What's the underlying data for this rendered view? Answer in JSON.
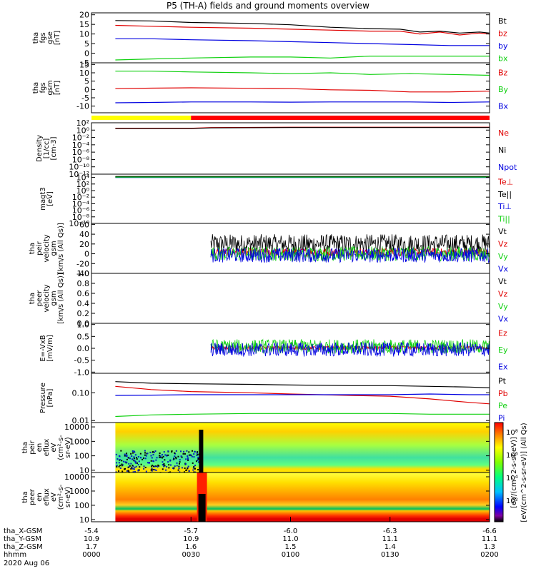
{
  "title": "P5 (TH-A) fields and ground moments overview",
  "colors": {
    "black": "#000000",
    "red": "#e00000",
    "green": "#10d010",
    "blue": "#0000e0",
    "yellow": "#ffff00",
    "frame": "#000000"
  },
  "status_bar": {
    "segments": [
      {
        "from": 0.0,
        "to": 0.5,
        "color": "#ffff00"
      },
      {
        "from": 0.5,
        "to": 2.0,
        "color": "#ff0000"
      }
    ]
  },
  "chart_data": [
    {
      "type": "line",
      "name": "fgs_gse",
      "ylabel": [
        "tha",
        "fgs",
        "gse",
        "[nT]"
      ],
      "ylim": [
        -5,
        21
      ],
      "yticks": [
        "20",
        "15",
        "10",
        "5",
        "0",
        "-5"
      ],
      "ytick_values": [
        20,
        15,
        10,
        5,
        0,
        -5
      ],
      "series": [
        {
          "name": "Bt",
          "color": "#000000",
          "x": [
            0.12,
            0.3,
            0.5,
            0.8,
            1.0,
            1.2,
            1.4,
            1.55,
            1.65,
            1.75,
            1.85,
            1.95,
            2.0
          ],
          "y": [
            17,
            16.8,
            16,
            15.5,
            14.8,
            13.5,
            12.8,
            12.5,
            11,
            11.5,
            10.5,
            11,
            10.5
          ]
        },
        {
          "name": "bz",
          "color": "#e00000",
          "x": [
            0.12,
            0.3,
            0.5,
            0.8,
            1.0,
            1.2,
            1.4,
            1.55,
            1.65,
            1.75,
            1.85,
            1.95,
            2.0
          ],
          "y": [
            14.5,
            14,
            13.5,
            13,
            12.5,
            12,
            11.5,
            11.5,
            10,
            11,
            9.5,
            10.5,
            10
          ]
        },
        {
          "name": "by",
          "color": "#0000e0",
          "x": [
            0.12,
            0.3,
            0.5,
            0.8,
            1.0,
            1.2,
            1.4,
            1.6,
            1.8,
            2.0
          ],
          "y": [
            7.5,
            7.5,
            7,
            6.5,
            6,
            5.5,
            5,
            4.5,
            4,
            4
          ]
        },
        {
          "name": "bx",
          "color": "#10d010",
          "x": [
            0.12,
            0.3,
            0.5,
            0.8,
            1.0,
            1.2,
            1.4,
            1.6,
            1.8,
            2.0
          ],
          "y": [
            -3.5,
            -3,
            -2.5,
            -2,
            -2,
            -2.5,
            -1.5,
            -1.5,
            -1.5,
            -1.5
          ]
        }
      ]
    },
    {
      "type": "line",
      "name": "fgs_gsm",
      "ylabel": [
        "tha",
        "fgs",
        "gsm",
        "[nT]"
      ],
      "ylim": [
        -14,
        16
      ],
      "yticks": [
        "15",
        "10",
        "5",
        "0",
        "-5",
        "-10"
      ],
      "ytick_values": [
        15,
        10,
        5,
        0,
        -5,
        -10
      ],
      "series": [
        {
          "name": "Bz",
          "color": "#e00000",
          "x": [
            0.12,
            0.3,
            0.5,
            0.8,
            1.0,
            1.2,
            1.4,
            1.6,
            1.8,
            2.0
          ],
          "y": [
            0.5,
            0.8,
            1,
            0.7,
            0.5,
            -0.2,
            -0.5,
            -1.5,
            -1.5,
            -1
          ]
        },
        {
          "name": "By",
          "color": "#10d010",
          "x": [
            0.12,
            0.3,
            0.5,
            0.8,
            1.0,
            1.2,
            1.4,
            1.6,
            1.8,
            2.0
          ],
          "y": [
            11,
            11,
            10.5,
            10,
            9.5,
            10,
            9,
            9.5,
            9,
            8.5
          ]
        },
        {
          "name": "Bx",
          "color": "#0000e0",
          "x": [
            0.12,
            0.3,
            0.5,
            0.8,
            1.0,
            1.2,
            1.4,
            1.6,
            1.8,
            2.0
          ],
          "y": [
            -8,
            -7.8,
            -7.5,
            -7.5,
            -7.6,
            -7.5,
            -7.5,
            -7.5,
            -7.8,
            -7.5
          ]
        }
      ]
    },
    {
      "type": "line",
      "name": "density",
      "ylabel": [
        "Density",
        "[1/cc]",
        "[cm-3]"
      ],
      "ylim": [
        -12,
        2
      ],
      "yticks": [
        "10²",
        "10⁰",
        "10⁻²",
        "10⁻⁴",
        "10⁻⁶",
        "10⁻⁸",
        "10⁻¹⁰",
        "10⁻¹²"
      ],
      "ytick_values": [
        2,
        0,
        -2,
        -4,
        -6,
        -8,
        -10,
        -12
      ],
      "series": [
        {
          "name": "Ne",
          "color": "#e00000",
          "x": [
            0.12,
            0.5,
            0.6,
            1.0,
            1.5,
            2.0
          ],
          "y": [
            0.5,
            0.5,
            0.7,
            0.8,
            0.8,
            0.8
          ]
        },
        {
          "name": "Ni",
          "color": "#000000",
          "x": [
            0.12,
            0.5,
            0.6,
            1.0,
            1.5,
            2.0
          ],
          "y": [
            0.4,
            0.4,
            0.6,
            0.7,
            0.7,
            0.7
          ]
        },
        {
          "name": "Npot",
          "color": "#0000e0",
          "x": [],
          "y": []
        }
      ]
    },
    {
      "type": "line",
      "name": "temperature",
      "ylabel": [
        "magt3",
        "[eV]"
      ],
      "ylim": [
        -10,
        5
      ],
      "yticks": [
        "10⁴",
        "10²",
        "10⁰",
        "10⁻²",
        "10⁻⁴",
        "10⁻⁶",
        "10⁻⁸",
        "10⁻¹⁰"
      ],
      "ytick_values": [
        4,
        2,
        0,
        -2,
        -4,
        -6,
        -8,
        -10
      ],
      "series": [
        {
          "name": "Te⊥",
          "color": "#e00000",
          "x": [
            0.12,
            0.5,
            1.0,
            1.5,
            2.0
          ],
          "y": [
            4.2,
            4.2,
            4.2,
            4.2,
            4.2
          ]
        },
        {
          "name": "Te||",
          "color": "#000000",
          "x": [
            0.12,
            0.5,
            1.0,
            1.5,
            2.0
          ],
          "y": [
            4.3,
            4.3,
            4.3,
            4.3,
            4.3
          ]
        },
        {
          "name": "Ti⊥",
          "color": "#0000e0",
          "x": [
            0.12,
            0.5,
            1.0,
            1.5,
            2.0
          ],
          "y": [
            4.0,
            4.0,
            4.0,
            4.0,
            4.0
          ]
        },
        {
          "name": "Ti||",
          "color": "#10d010",
          "x": [
            0.12,
            0.5,
            1.0,
            1.5,
            2.0
          ],
          "y": [
            4.1,
            4.1,
            4.1,
            4.1,
            4.1
          ]
        }
      ]
    },
    {
      "type": "line",
      "name": "peir_velocity",
      "ylabel": [
        "tha",
        "peir",
        "velocity",
        "gsm",
        "[km/s (All Qs)]"
      ],
      "ylim": [
        -40,
        62
      ],
      "yticks": [
        "60",
        "40",
        "20",
        "0",
        "-20",
        "-40"
      ],
      "ytick_values": [
        60,
        40,
        20,
        0,
        -20,
        -40
      ],
      "noisy": true,
      "x_start": 0.6,
      "series": [
        {
          "name": "Vt",
          "color": "#000000",
          "mean": 20,
          "amp": 20
        },
        {
          "name": "Vz",
          "color": "#e00000",
          "mean": 3,
          "amp": 8
        },
        {
          "name": "Vy",
          "color": "#10d010",
          "mean": 0,
          "amp": 15
        },
        {
          "name": "Vx",
          "color": "#0000e0",
          "mean": -3,
          "amp": 15
        }
      ]
    },
    {
      "type": "line",
      "name": "peer_velocity",
      "ylabel": [
        "tha",
        "peer",
        "velocity",
        "gsm",
        "[km/s (All Qs)]"
      ],
      "ylim": [
        0,
        1
      ],
      "yticks": [
        "1.0",
        "0.8",
        "0.6",
        "0.4",
        "0.2",
        "0.0"
      ],
      "ytick_values": [
        1.0,
        0.8,
        0.6,
        0.4,
        0.2,
        0.0
      ],
      "series": [
        {
          "name": "Vt",
          "color": "#000000",
          "x": [],
          "y": []
        },
        {
          "name": "Vz",
          "color": "#e00000",
          "x": [],
          "y": []
        },
        {
          "name": "Vy",
          "color": "#10d010",
          "x": [],
          "y": []
        },
        {
          "name": "Vx",
          "color": "#0000e0",
          "x": [],
          "y": []
        }
      ]
    },
    {
      "type": "line",
      "name": "efield",
      "ylabel": [
        "E=-VxB",
        "[mV/m]"
      ],
      "ylim": [
        -1.05,
        1.05
      ],
      "yticks": [
        "1.0",
        "0.5",
        "0.0",
        "-0.5",
        "-1.0"
      ],
      "ytick_values": [
        1.0,
        0.5,
        0.0,
        -0.5,
        -1.0
      ],
      "noisy": true,
      "x_start": 0.6,
      "series": [
        {
          "name": "Ez",
          "color": "#e00000",
          "mean": 0.02,
          "amp": 0.08
        },
        {
          "name": "Ey",
          "color": "#10d010",
          "mean": 0.08,
          "amp": 0.3
        },
        {
          "name": "Ex",
          "color": "#0000e0",
          "mean": -0.05,
          "amp": 0.3
        }
      ]
    },
    {
      "type": "line",
      "name": "pressure",
      "ylabel": [
        "Pressure",
        "[nPa]"
      ],
      "ylog": true,
      "ylim": [
        0.0085,
        0.5
      ],
      "yticks": [
        "0.10",
        "0.01"
      ],
      "ytick_values": [
        0.1,
        0.01
      ],
      "series": [
        {
          "name": "Pt",
          "color": "#000000",
          "x": [
            0.12,
            0.3,
            0.5,
            0.8,
            1.0,
            1.3,
            1.5,
            1.7,
            1.9,
            2.0
          ],
          "y": [
            0.25,
            0.22,
            0.21,
            0.2,
            0.19,
            0.18,
            0.18,
            0.17,
            0.16,
            0.15
          ]
        },
        {
          "name": "Pb",
          "color": "#e00000",
          "x": [
            0.12,
            0.3,
            0.5,
            0.8,
            1.0,
            1.3,
            1.5,
            1.7,
            1.9,
            2.0
          ],
          "y": [
            0.17,
            0.13,
            0.11,
            0.1,
            0.09,
            0.08,
            0.075,
            0.06,
            0.045,
            0.04
          ]
        },
        {
          "name": "Pe",
          "color": "#10d010",
          "x": [
            0.12,
            0.3,
            0.5,
            0.8,
            1.0,
            1.3,
            1.5,
            1.7,
            1.9,
            2.0
          ],
          "y": [
            0.014,
            0.016,
            0.017,
            0.018,
            0.018,
            0.018,
            0.018,
            0.017,
            0.017,
            0.017
          ]
        },
        {
          "name": "Pi",
          "color": "#0000e0",
          "x": [
            0.12,
            0.3,
            0.5,
            0.8,
            1.0,
            1.3,
            1.5,
            1.7,
            1.9,
            2.0
          ],
          "y": [
            0.08,
            0.082,
            0.085,
            0.085,
            0.085,
            0.085,
            0.085,
            0.09,
            0.085,
            0.085
          ]
        }
      ]
    },
    {
      "type": "heatmap",
      "name": "peir_eflux",
      "ylabel": [
        "tha",
        "peir",
        "en",
        "eflux",
        "eV",
        "(cm²-s-",
        "sr-eV)"
      ],
      "ylog": true,
      "ylim": [
        7,
        20000
      ],
      "yticks": [
        "10000",
        "1000",
        "100",
        "10"
      ],
      "ytick_values": [
        10000,
        1000,
        100,
        10
      ]
    },
    {
      "type": "heatmap",
      "name": "peer_eflux",
      "ylabel": [
        "tha",
        "peer",
        "en",
        "eflux",
        "eV",
        "(cm²-s-",
        "sr-eV)"
      ],
      "ylog": true,
      "ylim": [
        7,
        20000
      ],
      "yticks": [
        "10000",
        "1000",
        "100",
        "10"
      ],
      "ytick_values": [
        10000,
        1000,
        100,
        10
      ]
    }
  ],
  "colorbar": {
    "ticks": [
      "10⁸",
      "10⁶",
      "10⁴",
      "10²"
    ],
    "label": "[eV/(cm^2-s-sr-eV)] (All Qs)",
    "label2": "[eV/(cm^2-s-sr-eV)]"
  },
  "x_axis": {
    "row_labels": [
      "tha_X-GSM",
      "tha_Y-GSM",
      "tha_Z-GSM",
      "hhmm",
      "2020 Aug 06"
    ],
    "columns": [
      {
        "x": 0.0,
        "values": [
          "-5.4",
          "10.9",
          "1.7",
          "0000"
        ]
      },
      {
        "x": 0.5,
        "values": [
          "-5.7",
          "10.9",
          "1.6",
          "0030"
        ]
      },
      {
        "x": 1.0,
        "values": [
          "-6.0",
          "11.0",
          "1.5",
          "0100"
        ]
      },
      {
        "x": 1.5,
        "values": [
          "-6.3",
          "11.1",
          "1.4",
          "0130"
        ]
      },
      {
        "x": 2.0,
        "values": [
          "-6.6",
          "11.1",
          "1.3",
          "0200"
        ]
      }
    ]
  }
}
